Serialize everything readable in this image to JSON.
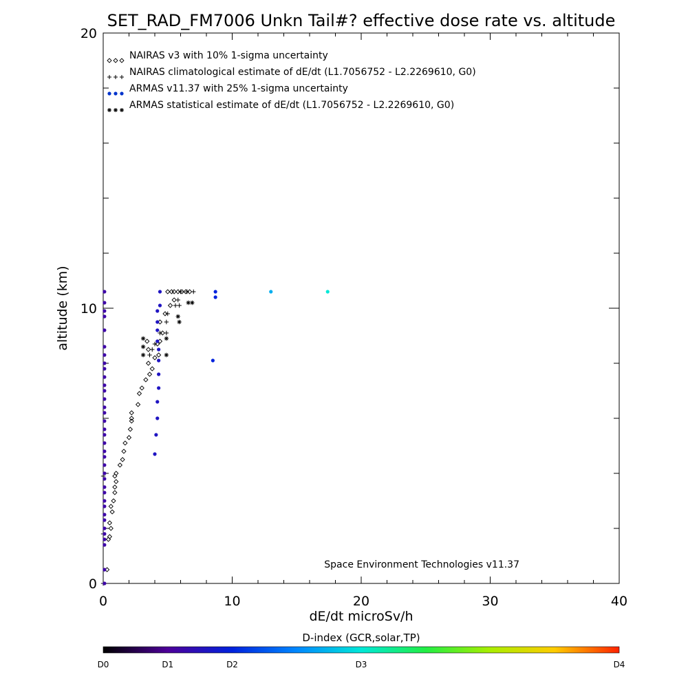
{
  "chart_data": {
    "type": "scatter",
    "title": "SET_RAD_FM7006  Unkn Tail#? effective dose rate vs. altitude",
    "xlabel": "dE/dt microSv/h",
    "ylabel": "altitude (km)",
    "xlim": [
      0,
      40
    ],
    "ylim": [
      0,
      20
    ],
    "x_ticks": [
      "0",
      "10",
      "20",
      "30",
      "40"
    ],
    "y_ticks": [
      "0",
      "10",
      "20"
    ],
    "grid": false,
    "legend_position": "top-left",
    "annotation": "Space Environment Technologies v11.37",
    "colorbar": {
      "title": "D-index (GCR,solar,TP)",
      "labels": [
        {
          "text": "D0",
          "value": 0
        },
        {
          "text": "D1",
          "value": 1
        },
        {
          "text": "D2",
          "value": 2
        },
        {
          "text": "D3",
          "value": 3
        },
        {
          "text": "D4",
          "value": 4
        }
      ],
      "range": [
        0,
        4
      ],
      "label_fractions": [
        0.0,
        0.125,
        0.25,
        0.5,
        1.0
      ]
    },
    "series": [
      {
        "name": "NAIRAS v3 with 10% 1-sigma uncertainty",
        "marker": "diamond",
        "color": "#000000",
        "points": [
          [
            0.3,
            0.5
          ],
          [
            0.4,
            1.6
          ],
          [
            0.5,
            1.7
          ],
          [
            0.6,
            2.0
          ],
          [
            0.5,
            2.2
          ],
          [
            0.7,
            2.6
          ],
          [
            0.6,
            2.8
          ],
          [
            0.8,
            3.0
          ],
          [
            0.9,
            3.3
          ],
          [
            0.9,
            3.5
          ],
          [
            1.0,
            3.7
          ],
          [
            0.9,
            3.9
          ],
          [
            1.0,
            4.0
          ],
          [
            1.3,
            4.3
          ],
          [
            1.5,
            4.5
          ],
          [
            1.6,
            4.8
          ],
          [
            1.7,
            5.1
          ],
          [
            2.0,
            5.3
          ],
          [
            2.1,
            5.6
          ],
          [
            2.2,
            5.9
          ],
          [
            2.2,
            6.0
          ],
          [
            2.2,
            6.2
          ],
          [
            2.7,
            6.5
          ],
          [
            2.8,
            6.9
          ],
          [
            3.0,
            7.1
          ],
          [
            3.3,
            7.4
          ],
          [
            3.6,
            7.6
          ],
          [
            3.8,
            7.8
          ],
          [
            3.5,
            8.0
          ],
          [
            4.0,
            8.2
          ],
          [
            4.3,
            8.3
          ],
          [
            3.5,
            8.5
          ],
          [
            4.2,
            8.7
          ],
          [
            4.4,
            8.8
          ],
          [
            3.4,
            8.8
          ],
          [
            4.6,
            9.1
          ],
          [
            4.4,
            9.5
          ],
          [
            4.8,
            9.8
          ],
          [
            5.2,
            10.1
          ],
          [
            5.5,
            10.3
          ],
          [
            5.0,
            10.6
          ],
          [
            5.3,
            10.6
          ],
          [
            5.5,
            10.6
          ],
          [
            5.8,
            10.6
          ],
          [
            6.1,
            10.6
          ],
          [
            6.4,
            10.6
          ],
          [
            6.7,
            10.6
          ]
        ]
      },
      {
        "name": "NAIRAS climatological estimate of dE/dt (L1.7056752 - L2.2269610, G0)",
        "marker": "plus",
        "color": "#000000",
        "points": [
          [
            0.0,
            0.0
          ],
          [
            0.0,
            1.8
          ],
          [
            0.0,
            3.9
          ],
          [
            3.6,
            8.3
          ],
          [
            3.8,
            8.5
          ],
          [
            4.0,
            8.7
          ],
          [
            4.4,
            9.1
          ],
          [
            4.9,
            9.1
          ],
          [
            4.9,
            9.5
          ],
          [
            5.0,
            9.8
          ],
          [
            5.6,
            10.1
          ],
          [
            5.8,
            10.3
          ],
          [
            5.9,
            10.1
          ],
          [
            6.0,
            10.6
          ],
          [
            6.5,
            10.6
          ],
          [
            7.0,
            10.6
          ]
        ]
      },
      {
        "name": "ARMAS v11.37 with 25% 1-sigma uncertainty",
        "marker": "dot",
        "color": "#0033cc",
        "points": [
          [
            0.1,
            0.0
          ],
          [
            0.1,
            0.5
          ],
          [
            0.1,
            1.4
          ],
          [
            0.1,
            1.6
          ],
          [
            0.1,
            1.8
          ],
          [
            0.1,
            2.0
          ],
          [
            0.1,
            2.3
          ],
          [
            0.1,
            2.5
          ],
          [
            0.1,
            2.8
          ],
          [
            0.1,
            3.0
          ],
          [
            0.1,
            3.3
          ],
          [
            0.1,
            3.5
          ],
          [
            0.1,
            3.8
          ],
          [
            0.1,
            4.0
          ],
          [
            0.1,
            4.3
          ],
          [
            0.1,
            4.6
          ],
          [
            0.1,
            4.8
          ],
          [
            0.1,
            5.1
          ],
          [
            0.1,
            5.4
          ],
          [
            0.1,
            5.6
          ],
          [
            0.1,
            5.9
          ],
          [
            0.1,
            6.2
          ],
          [
            0.1,
            6.4
          ],
          [
            0.1,
            6.7
          ],
          [
            0.1,
            7.0
          ],
          [
            0.1,
            7.2
          ],
          [
            0.1,
            7.5
          ],
          [
            0.1,
            7.8
          ],
          [
            0.1,
            8.0
          ],
          [
            0.1,
            8.3
          ],
          [
            0.1,
            8.6
          ],
          [
            0.1,
            9.2
          ],
          [
            0.1,
            9.7
          ],
          [
            0.1,
            9.9
          ],
          [
            0.1,
            10.2
          ],
          [
            0.1,
            10.6
          ],
          [
            4.0,
            4.7
          ],
          [
            4.1,
            5.4
          ],
          [
            4.2,
            6.0
          ],
          [
            4.2,
            6.6
          ],
          [
            4.3,
            7.1
          ],
          [
            4.3,
            7.6
          ],
          [
            4.3,
            8.1
          ],
          [
            4.3,
            8.5
          ],
          [
            4.2,
            8.8
          ],
          [
            4.2,
            9.2
          ],
          [
            4.2,
            9.5
          ],
          [
            4.2,
            9.9
          ],
          [
            4.4,
            10.1
          ],
          [
            4.4,
            10.6
          ],
          [
            8.5,
            8.1
          ],
          [
            8.7,
            10.4
          ],
          [
            8.7,
            10.6
          ],
          [
            13.0,
            10.6
          ],
          [
            17.4,
            10.6
          ]
        ],
        "dindex": [
          0.6,
          0.6,
          0.6,
          0.6,
          0.6,
          0.6,
          0.6,
          0.6,
          0.6,
          0.6,
          0.6,
          0.6,
          0.6,
          0.6,
          0.6,
          0.6,
          0.6,
          0.6,
          0.6,
          0.6,
          0.6,
          0.6,
          0.6,
          0.6,
          0.6,
          0.6,
          0.6,
          0.6,
          0.6,
          0.6,
          0.6,
          0.6,
          0.6,
          0.6,
          0.6,
          0.6,
          0.8,
          0.8,
          0.8,
          0.8,
          0.8,
          0.8,
          0.8,
          0.8,
          0.8,
          0.8,
          0.8,
          0.8,
          0.8,
          0.8,
          1.0,
          1.0,
          1.0,
          1.7,
          2.0
        ]
      },
      {
        "name": "ARMAS statistical estimate of dE/dt (L1.7056752 - L2.2269610, G0)",
        "marker": "asterisk",
        "color": "#000000",
        "points": [
          [
            3.1,
            8.3
          ],
          [
            3.1,
            8.6
          ],
          [
            3.1,
            8.9
          ],
          [
            4.9,
            8.3
          ],
          [
            4.9,
            8.9
          ],
          [
            5.8,
            9.7
          ],
          [
            5.9,
            9.5
          ],
          [
            6.6,
            10.2
          ],
          [
            6.9,
            10.2
          ]
        ]
      }
    ]
  }
}
